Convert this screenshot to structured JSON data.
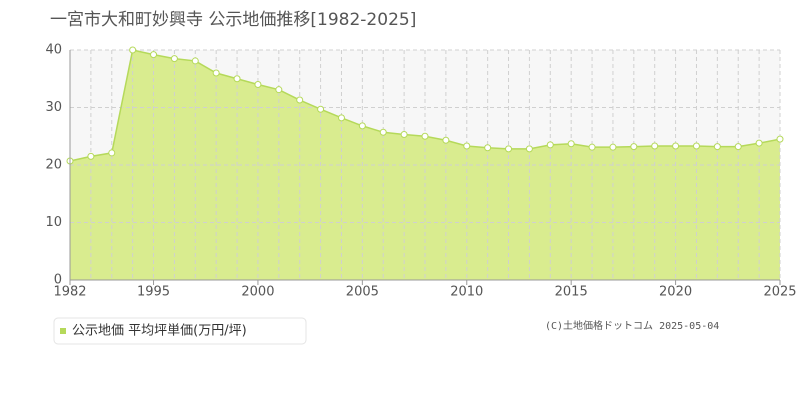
{
  "chart_data": {
    "type": "area",
    "title": "一宮市大和町妙興寺 公示地価推移[1982-2025]",
    "categories": [
      "1982",
      null,
      null,
      null,
      "1995",
      null,
      null,
      null,
      null,
      "2000",
      null,
      null,
      null,
      null,
      "2005",
      null,
      null,
      null,
      null,
      "2010",
      null,
      null,
      null,
      null,
      "2015",
      null,
      null,
      null,
      null,
      "2020",
      null,
      null,
      null,
      null,
      "2025"
    ],
    "series": [
      {
        "name": "公示地価 平均坪単価(万円/坪)",
        "color": "#b5d95a",
        "values": [
          20.7,
          21.5,
          22.1,
          40.0,
          39.2,
          38.5,
          38.1,
          36.0,
          35.0,
          34.0,
          33.1,
          31.3,
          29.7,
          28.2,
          26.8,
          25.7,
          25.3,
          25.0,
          24.3,
          23.3,
          23.0,
          22.8,
          22.8,
          23.5,
          23.7,
          23.1,
          23.1,
          23.2,
          23.3,
          23.3,
          23.3,
          23.2,
          23.2,
          23.8,
          24.5
        ]
      }
    ],
    "ylim": [
      0,
      40
    ],
    "yticks": [
      0,
      10,
      20,
      30,
      40
    ],
    "grid": true,
    "copyright": "(C)土地価格ドットコム 2025-05-04"
  }
}
